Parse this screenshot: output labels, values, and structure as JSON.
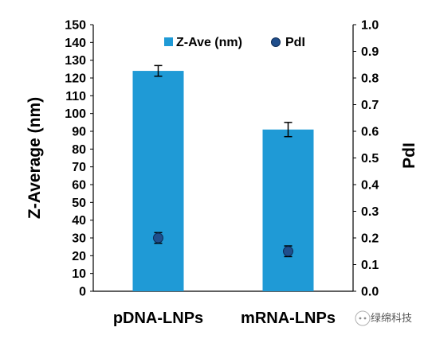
{
  "chart_data": {
    "type": "bar",
    "categories": [
      "pDNA-LNPs",
      "mRNA-LNPs"
    ],
    "series": [
      {
        "name": "Z-Ave (nm)",
        "axis": "left",
        "kind": "bar",
        "values": [
          124,
          91
        ],
        "errors": [
          3,
          4
        ],
        "color": "#1f9ad6"
      },
      {
        "name": "PdI",
        "axis": "right",
        "kind": "scatter",
        "values": [
          0.2,
          0.15
        ],
        "errors": [
          0.02,
          0.02
        ],
        "color": "#1f4e8c"
      }
    ],
    "ylabel": "Z-Average (nm)",
    "y2label": "PdI",
    "ylim": [
      0,
      150
    ],
    "y2lim": [
      0,
      1.0
    ],
    "yticks": [
      "0",
      "10",
      "20",
      "30",
      "40",
      "50",
      "60",
      "70",
      "80",
      "90",
      "100",
      "110",
      "120",
      "130",
      "140",
      "150"
    ],
    "y2ticks": [
      "0.0",
      "0.1",
      "0.2",
      "0.3",
      "0.4",
      "0.5",
      "0.6",
      "0.7",
      "0.8",
      "0.9",
      "1.0"
    ],
    "legend_position": "top",
    "grid": false
  },
  "watermark": {
    "text": "绿绵科技"
  }
}
